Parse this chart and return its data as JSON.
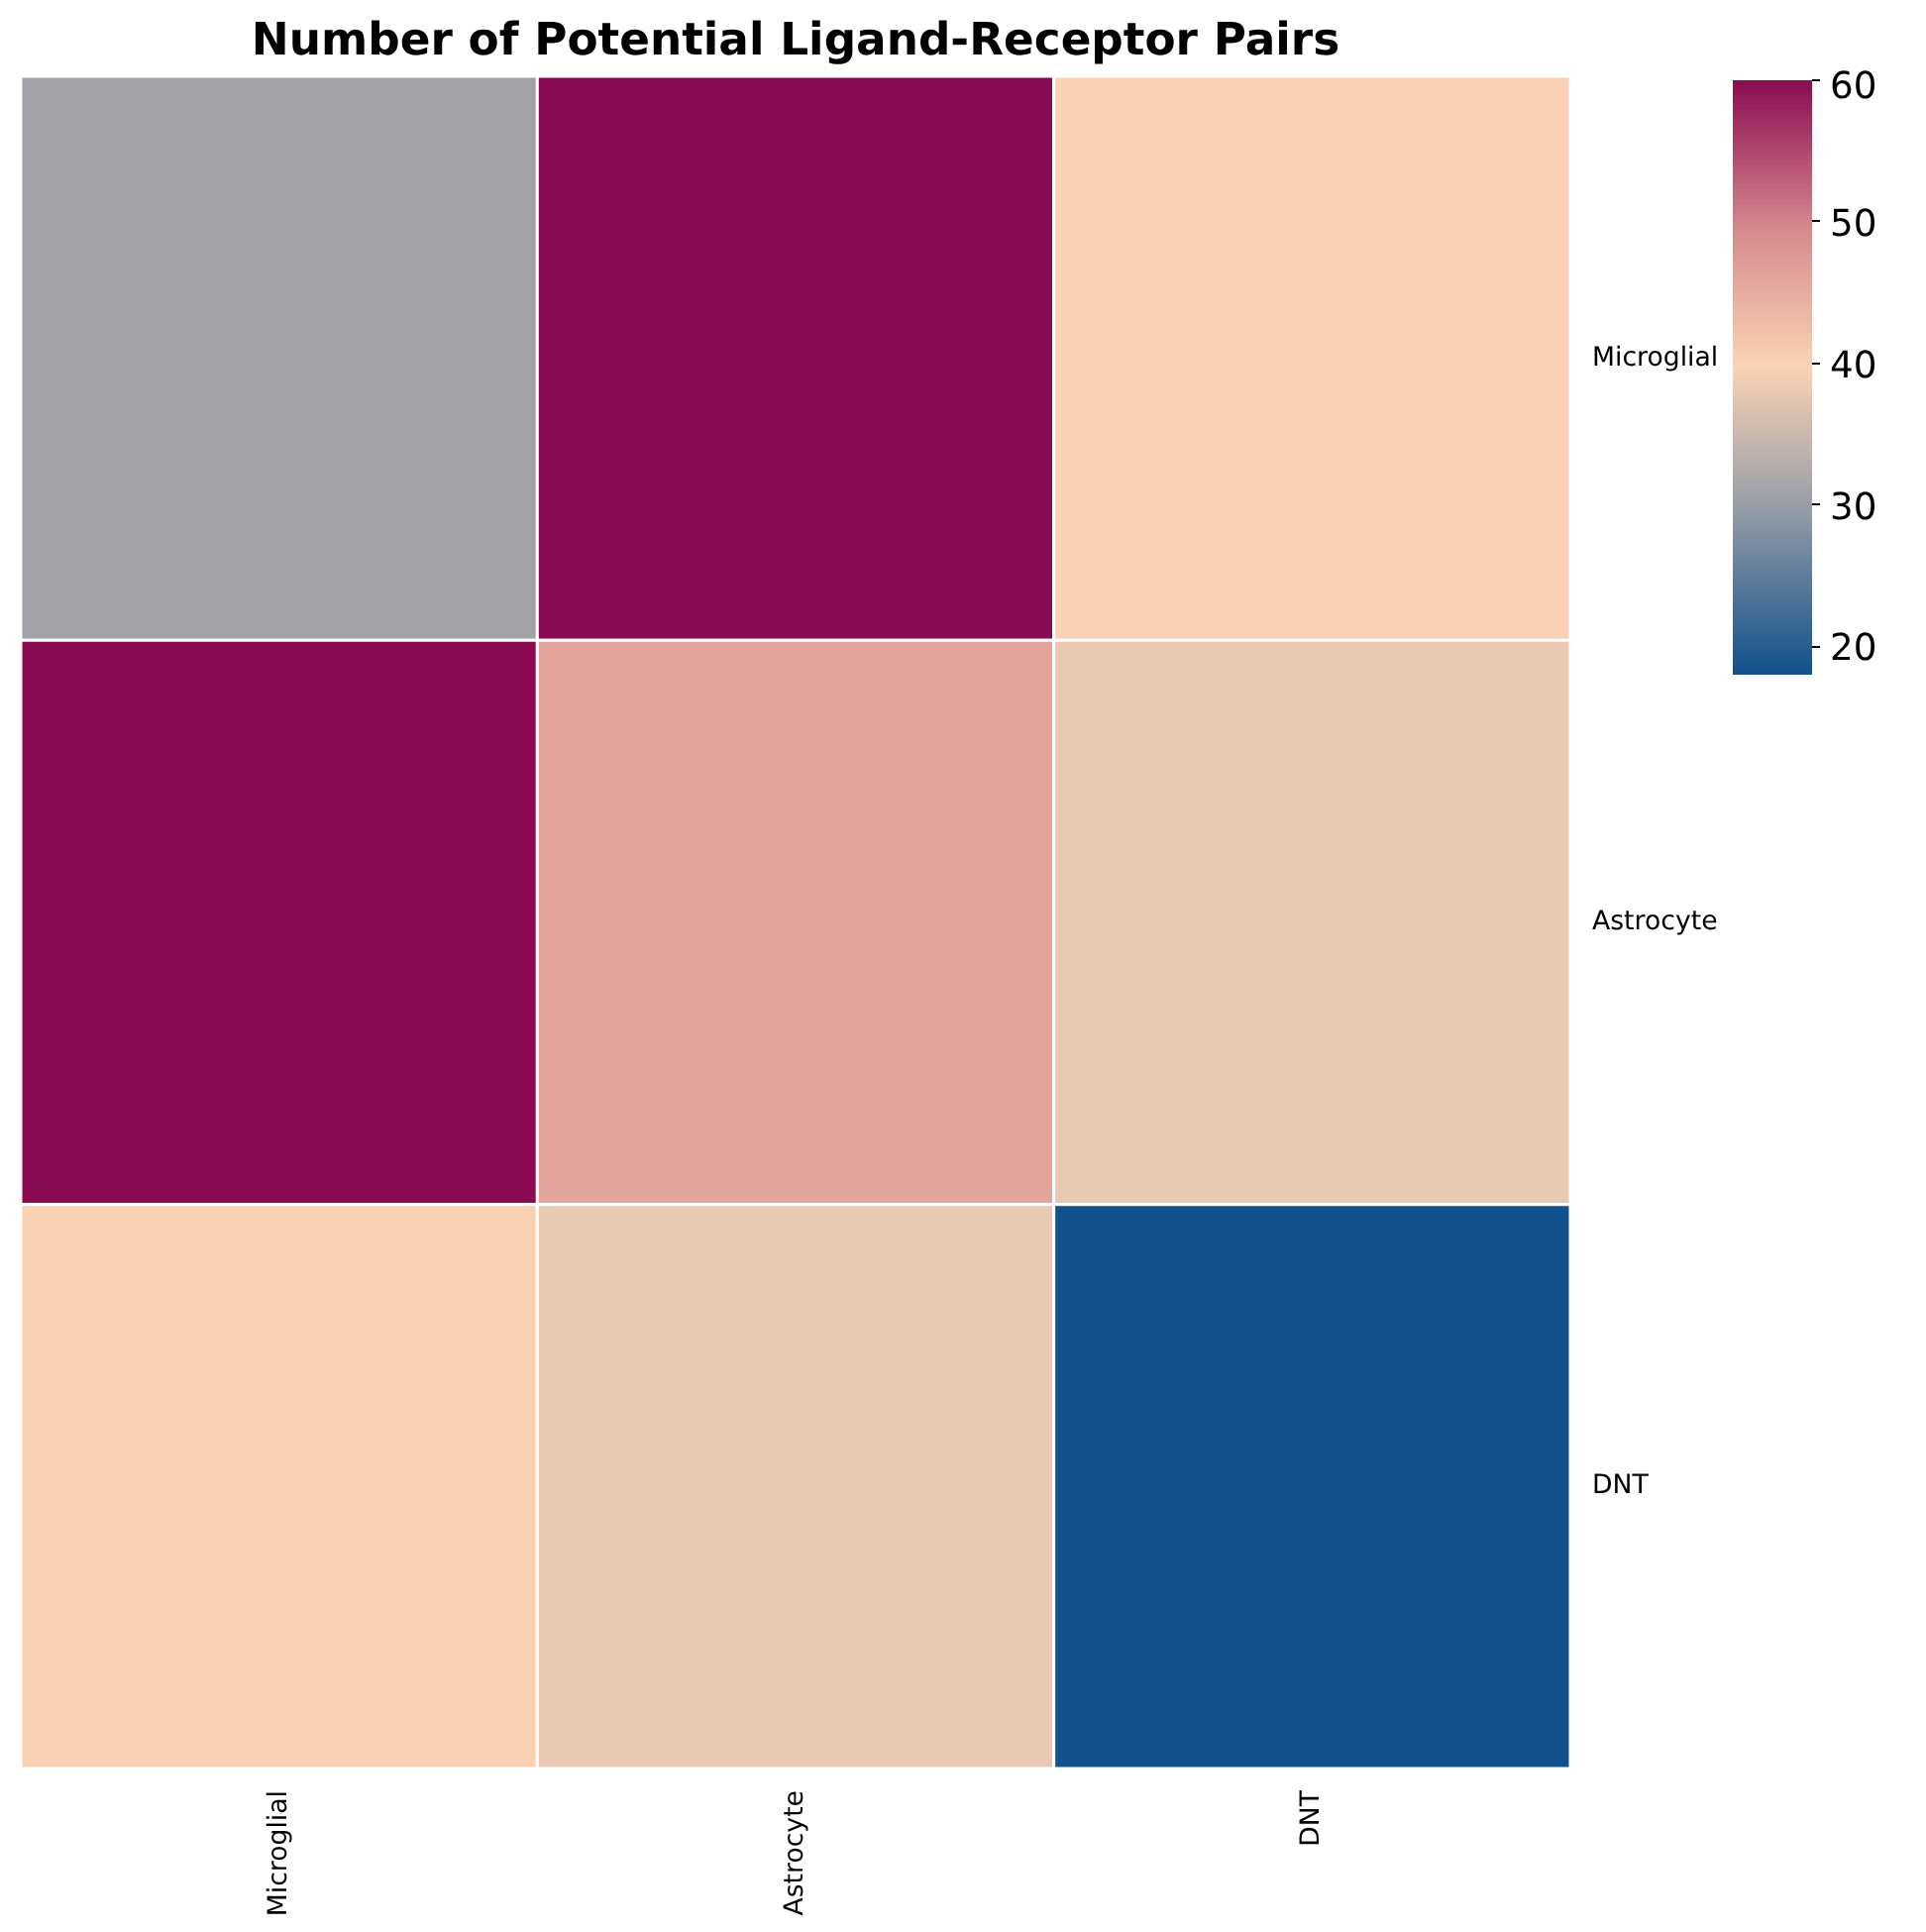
{
  "chart_data": {
    "type": "heatmap",
    "title": "Number of Potential Ligand-Receptor Pairs",
    "categories": [
      "Microglial",
      "Astrocyte",
      "DNT"
    ],
    "y_categories": [
      "Microglial",
      "Astrocyte",
      "DNT"
    ],
    "cells": [
      [
        31,
        60,
        40
      ],
      [
        60,
        46,
        38
      ],
      [
        40,
        38,
        18
      ]
    ],
    "clim": [
      18,
      60
    ],
    "cticks": [
      20,
      30,
      40,
      50,
      60
    ]
  }
}
